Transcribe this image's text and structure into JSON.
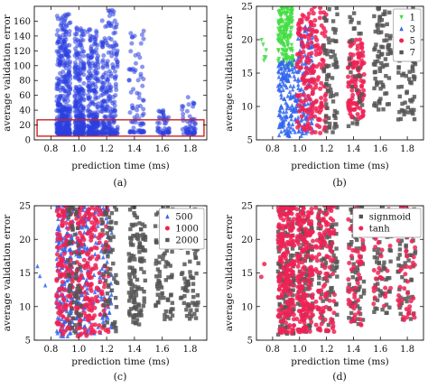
{
  "chart_data": [
    {
      "id": "a",
      "type": "scatter",
      "caption": "(a)",
      "xlabel": "prediction time (ms)",
      "ylabel": "average validation error",
      "xlim": [
        0.68,
        1.92
      ],
      "ylim": [
        0,
        180
      ],
      "xticks": [
        "0.8",
        "1.0",
        "1.2",
        "1.4",
        "1.6",
        "1.8"
      ],
      "yticks": [
        "0",
        "20",
        "40",
        "60",
        "80",
        "100",
        "120",
        "140",
        "160"
      ],
      "highlight": {
        "x": [
          0.7,
          1.9
        ],
        "y": [
          5,
          27
        ],
        "color": "#cc2222"
      },
      "series": [
        {
          "color": "#2b3fe0",
          "clusters": [
            {
              "x": [
                0.84,
                0.94
              ],
              "y": [
                8,
                170
              ],
              "n": 380
            },
            {
              "x": [
                0.97,
                1.04
              ],
              "y": [
                8,
                160
              ],
              "n": 260
            },
            {
              "x": [
                1.06,
                1.14
              ],
              "y": [
                8,
                150
              ],
              "n": 240
            },
            {
              "x": [
                1.16,
                1.28
              ],
              "y": [
                8,
                175
              ],
              "n": 220
            },
            {
              "x": [
                1.36,
                1.47
              ],
              "y": [
                10,
                150
              ],
              "n": 80
            },
            {
              "x": [
                1.56,
                1.65
              ],
              "y": [
                8,
                40
              ],
              "n": 45
            },
            {
              "x": [
                1.74,
                1.84
              ],
              "y": [
                8,
                60
              ],
              "n": 55
            }
          ]
        }
      ]
    },
    {
      "id": "b",
      "type": "scatter",
      "caption": "(b)",
      "xlabel": "prediction time (ms)",
      "ylabel": "average validation error",
      "xlim": [
        0.68,
        1.92
      ],
      "ylim": [
        5,
        25
      ],
      "xticks": [
        "0.8",
        "1.0",
        "1.2",
        "1.4",
        "1.6",
        "1.8"
      ],
      "yticks": [
        "5",
        "10",
        "15",
        "20",
        "25"
      ],
      "legend": {
        "position": "top-right",
        "entries": [
          "1",
          "3",
          "5",
          "7"
        ]
      },
      "series": [
        {
          "name": "1",
          "color": "#44dd44",
          "marker": "triangle-down",
          "clusters": [
            {
              "x": [
                0.84,
                0.95
              ],
              "y": [
                16,
                25
              ],
              "n": 170
            },
            {
              "x": [
                0.7,
                0.8
              ],
              "y": [
                15,
                20
              ],
              "n": 6
            }
          ]
        },
        {
          "name": "3",
          "color": "#3366ee",
          "marker": "triangle-up",
          "clusters": [
            {
              "x": [
                0.84,
                0.98
              ],
              "y": [
                5.5,
                17
              ],
              "n": 160
            },
            {
              "x": [
                0.98,
                1.1
              ],
              "y": [
                5.5,
                22
              ],
              "n": 150
            }
          ]
        },
        {
          "name": "5",
          "color": "#ee2255",
          "marker": "circle",
          "clusters": [
            {
              "x": [
                0.98,
                1.08
              ],
              "y": [
                6,
                24
              ],
              "n": 90
            },
            {
              "x": [
                1.08,
                1.2
              ],
              "y": [
                6,
                25
              ],
              "n": 110
            },
            {
              "x": [
                1.36,
                1.48
              ],
              "y": [
                8,
                20
              ],
              "n": 120
            }
          ]
        },
        {
          "name": "7",
          "color": "#555555",
          "marker": "square",
          "clusters": [
            {
              "x": [
                1.18,
                1.28
              ],
              "y": [
                6,
                25
              ],
              "n": 70
            },
            {
              "x": [
                1.36,
                1.47
              ],
              "y": [
                7,
                25
              ],
              "n": 30
            },
            {
              "x": [
                1.55,
                1.68
              ],
              "y": [
                9,
                25
              ],
              "n": 80
            },
            {
              "x": [
                1.73,
                1.86
              ],
              "y": [
                8,
                25
              ],
              "n": 80
            }
          ]
        }
      ]
    },
    {
      "id": "c",
      "type": "scatter",
      "caption": "(c)",
      "xlabel": "prediction time (ms)",
      "ylabel": "average validation error",
      "xlim": [
        0.68,
        1.92
      ],
      "ylim": [
        5,
        25
      ],
      "xticks": [
        "0.8",
        "1.0",
        "1.2",
        "1.4",
        "1.6",
        "1.8"
      ],
      "yticks": [
        "5",
        "10",
        "15",
        "20",
        "25"
      ],
      "legend": {
        "position": "top-right",
        "entries": [
          "500",
          "1000",
          "2000"
        ]
      },
      "series": [
        {
          "name": "500",
          "color": "#3366ee",
          "marker": "triangle-up",
          "clusters": [
            {
              "x": [
                0.84,
                0.96
              ],
              "y": [
                5.5,
                25
              ],
              "n": 200
            },
            {
              "x": [
                0.98,
                1.08
              ],
              "y": [
                5.5,
                25
              ],
              "n": 120
            },
            {
              "x": [
                1.1,
                1.24
              ],
              "y": [
                6,
                25
              ],
              "n": 80
            },
            {
              "x": [
                0.7,
                0.76
              ],
              "y": [
                13,
                16
              ],
              "n": 3
            }
          ]
        },
        {
          "name": "1000",
          "color": "#ee2255",
          "marker": "circle",
          "clusters": [
            {
              "x": [
                0.84,
                0.96
              ],
              "y": [
                5.5,
                25
              ],
              "n": 130
            },
            {
              "x": [
                0.98,
                1.1
              ],
              "y": [
                5.5,
                25
              ],
              "n": 140
            },
            {
              "x": [
                1.1,
                1.22
              ],
              "y": [
                6,
                25
              ],
              "n": 70
            }
          ]
        },
        {
          "name": "2000",
          "color": "#555555",
          "marker": "square",
          "clusters": [
            {
              "x": [
                0.92,
                1.02
              ],
              "y": [
                6,
                25
              ],
              "n": 60
            },
            {
              "x": [
                1.16,
                1.28
              ],
              "y": [
                6,
                25
              ],
              "n": 60
            },
            {
              "x": [
                1.36,
                1.48
              ],
              "y": [
                7,
                25
              ],
              "n": 120
            },
            {
              "x": [
                1.55,
                1.68
              ],
              "y": [
                8,
                25
              ],
              "n": 80
            },
            {
              "x": [
                1.73,
                1.86
              ],
              "y": [
                8,
                25
              ],
              "n": 80
            }
          ]
        }
      ]
    },
    {
      "id": "d",
      "type": "scatter",
      "caption": "(d)",
      "xlabel": "prediction time (ms)",
      "ylabel": "average validation error",
      "xlim": [
        0.68,
        1.92
      ],
      "ylim": [
        5,
        25
      ],
      "xticks": [
        "0.8",
        "1.0",
        "1.2",
        "1.4",
        "1.6",
        "1.8"
      ],
      "yticks": [
        "5",
        "10",
        "15",
        "20",
        "25"
      ],
      "legend": {
        "position": "top-right",
        "entries": [
          "signmoid",
          "tanh"
        ]
      },
      "series": [
        {
          "name": "signmoid",
          "color": "#555555",
          "marker": "square",
          "clusters": [
            {
              "x": [
                0.84,
                0.96
              ],
              "y": [
                5.5,
                25
              ],
              "n": 120
            },
            {
              "x": [
                0.98,
                1.1
              ],
              "y": [
                6,
                25
              ],
              "n": 100
            },
            {
              "x": [
                1.14,
                1.28
              ],
              "y": [
                6,
                25
              ],
              "n": 80
            },
            {
              "x": [
                1.36,
                1.48
              ],
              "y": [
                7,
                25
              ],
              "n": 80
            },
            {
              "x": [
                1.55,
                1.68
              ],
              "y": [
                9,
                25
              ],
              "n": 60
            },
            {
              "x": [
                1.73,
                1.86
              ],
              "y": [
                8,
                25
              ],
              "n": 60
            }
          ]
        },
        {
          "name": "tanh",
          "color": "#ee2255",
          "marker": "circle",
          "clusters": [
            {
              "x": [
                0.84,
                0.96
              ],
              "y": [
                6,
                25
              ],
              "n": 200
            },
            {
              "x": [
                0.98,
                1.1
              ],
              "y": [
                6,
                25
              ],
              "n": 180
            },
            {
              "x": [
                1.12,
                1.26
              ],
              "y": [
                6,
                25
              ],
              "n": 110
            },
            {
              "x": [
                1.36,
                1.48
              ],
              "y": [
                7,
                25
              ],
              "n": 60
            },
            {
              "x": [
                1.55,
                1.68
              ],
              "y": [
                10,
                25
              ],
              "n": 40
            },
            {
              "x": [
                1.73,
                1.86
              ],
              "y": [
                8,
                25
              ],
              "n": 50
            },
            {
              "x": [
                0.7,
                0.76
              ],
              "y": [
                14,
                17
              ],
              "n": 2
            }
          ]
        }
      ]
    }
  ]
}
